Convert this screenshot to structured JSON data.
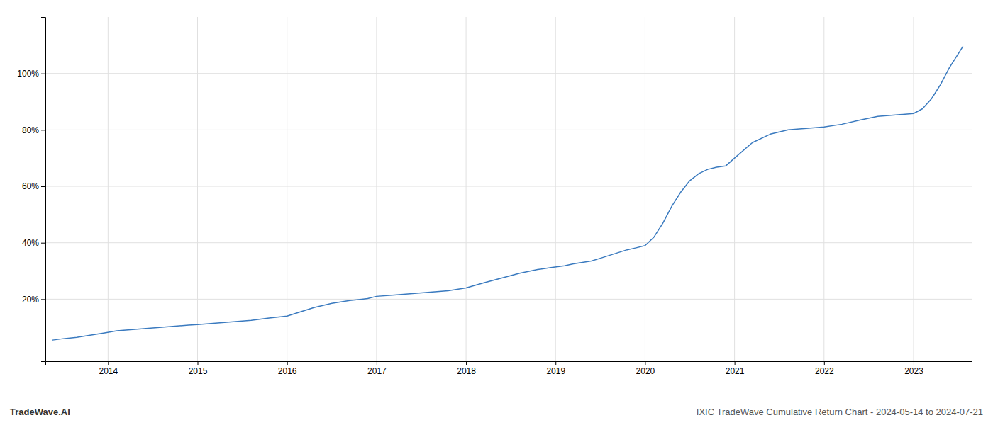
{
  "chart_data": {
    "type": "line",
    "title": "IXIC TradeWave Cumulative Return Chart - 2024-05-14 to 2024-07-21",
    "annotations": [
      "TradeWave.AI"
    ],
    "color": "#3a7abf",
    "grid": true,
    "x": [
      2013.38,
      2013.5,
      2013.65,
      2013.8,
      2013.95,
      2014.1,
      2014.3,
      2014.5,
      2014.7,
      2014.9,
      2015.0,
      2015.2,
      2015.4,
      2015.6,
      2015.8,
      2016.0,
      2016.15,
      2016.3,
      2016.5,
      2016.7,
      2016.9,
      2017.0,
      2017.2,
      2017.4,
      2017.6,
      2017.8,
      2018.0,
      2018.2,
      2018.4,
      2018.6,
      2018.8,
      2018.95,
      2019.1,
      2019.2,
      2019.3,
      2019.4,
      2019.5,
      2019.6,
      2019.7,
      2019.8,
      2019.9,
      2020.0,
      2020.1,
      2020.2,
      2020.3,
      2020.4,
      2020.5,
      2020.6,
      2020.7,
      2020.8,
      2020.9,
      2021.0,
      2021.2,
      2021.4,
      2021.6,
      2021.8,
      2022.0,
      2022.2,
      2022.4,
      2022.6,
      2022.8,
      2023.0,
      2023.1,
      2023.2,
      2023.3,
      2023.4,
      2023.55
    ],
    "values": [
      0.055,
      0.06,
      0.065,
      0.072,
      0.08,
      0.088,
      0.093,
      0.098,
      0.103,
      0.108,
      0.11,
      0.115,
      0.12,
      0.125,
      0.133,
      0.14,
      0.155,
      0.17,
      0.185,
      0.195,
      0.202,
      0.21,
      0.215,
      0.22,
      0.225,
      0.23,
      0.24,
      0.258,
      0.275,
      0.292,
      0.305,
      0.312,
      0.318,
      0.325,
      0.33,
      0.335,
      0.345,
      0.355,
      0.365,
      0.375,
      0.382,
      0.39,
      0.42,
      0.47,
      0.53,
      0.58,
      0.62,
      0.645,
      0.66,
      0.668,
      0.672,
      0.7,
      0.755,
      0.785,
      0.8,
      0.805,
      0.81,
      0.82,
      0.835,
      0.848,
      0.853,
      0.858,
      0.875,
      0.91,
      0.96,
      1.02,
      1.095
    ],
    "xlim": [
      2013.3,
      2023.65
    ],
    "xticks": [
      2014,
      2015,
      2016,
      2017,
      2018,
      2019,
      2020,
      2021,
      2022,
      2023
    ],
    "ylim": [
      -0.02,
      1.2
    ],
    "yticks": [
      {
        "value": 0.2,
        "label": "20%"
      },
      {
        "value": 0.4,
        "label": "40%"
      },
      {
        "value": 0.6,
        "label": "60%"
      },
      {
        "value": 0.8,
        "label": "80%"
      },
      {
        "value": 1.0,
        "label": "100%"
      }
    ]
  }
}
